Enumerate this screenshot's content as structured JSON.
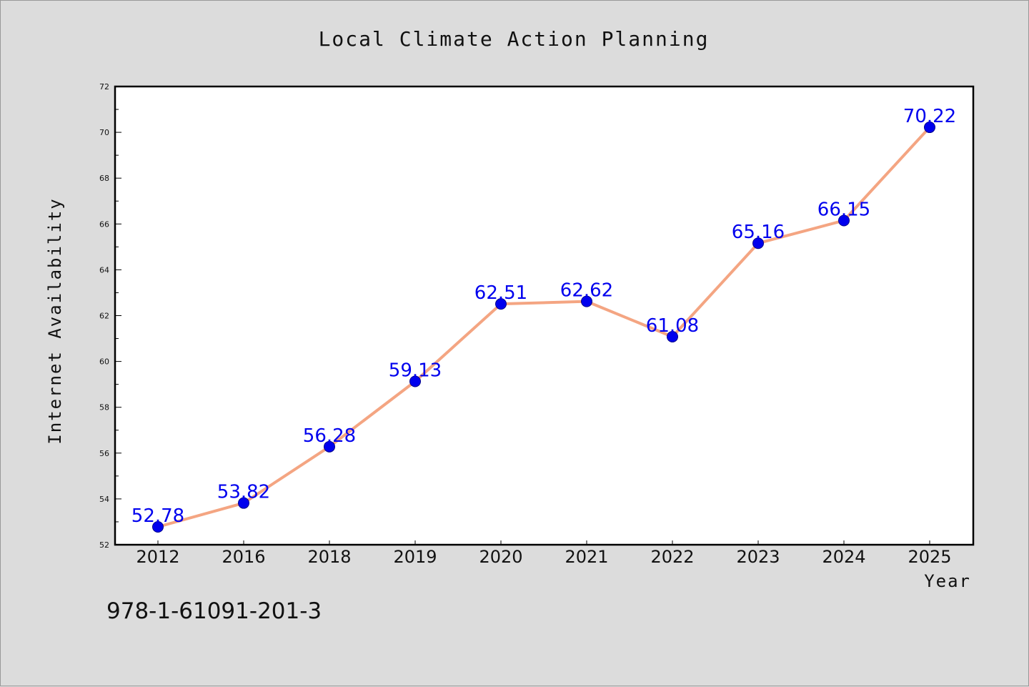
{
  "chart_data": {
    "type": "line",
    "title": "Local Climate Action Planning",
    "xlabel": "Year",
    "ylabel": "Internet Availability",
    "categories": [
      "2012",
      "2016",
      "2018",
      "2019",
      "2020",
      "2021",
      "2022",
      "2023",
      "2024",
      "2025"
    ],
    "series": [
      {
        "values": [
          52.78,
          53.82,
          56.28,
          59.13,
          62.51,
          62.62,
          61.08,
          65.16,
          66.15,
          70.22
        ],
        "labels": [
          "52.78",
          "53.82",
          "56.28",
          "59.13",
          "62.51",
          "62.62",
          "61.08",
          "65.16",
          "66.15",
          "70.22"
        ],
        "line_color": "#f4a582",
        "marker_color": "#0000ee",
        "label_color": "#0000ee"
      }
    ],
    "ylim": [
      52,
      72
    ],
    "yticks": [
      "52",
      "54",
      "56",
      "58",
      "60",
      "62",
      "64",
      "66",
      "68",
      "70",
      "72"
    ],
    "grid": false,
    "legend": "none"
  },
  "footer": {
    "isbn": "978-1-61091-201-3"
  },
  "colors": {
    "background": "#dcdcdc",
    "plot_background": "#ffffff",
    "axis": "#000000"
  }
}
